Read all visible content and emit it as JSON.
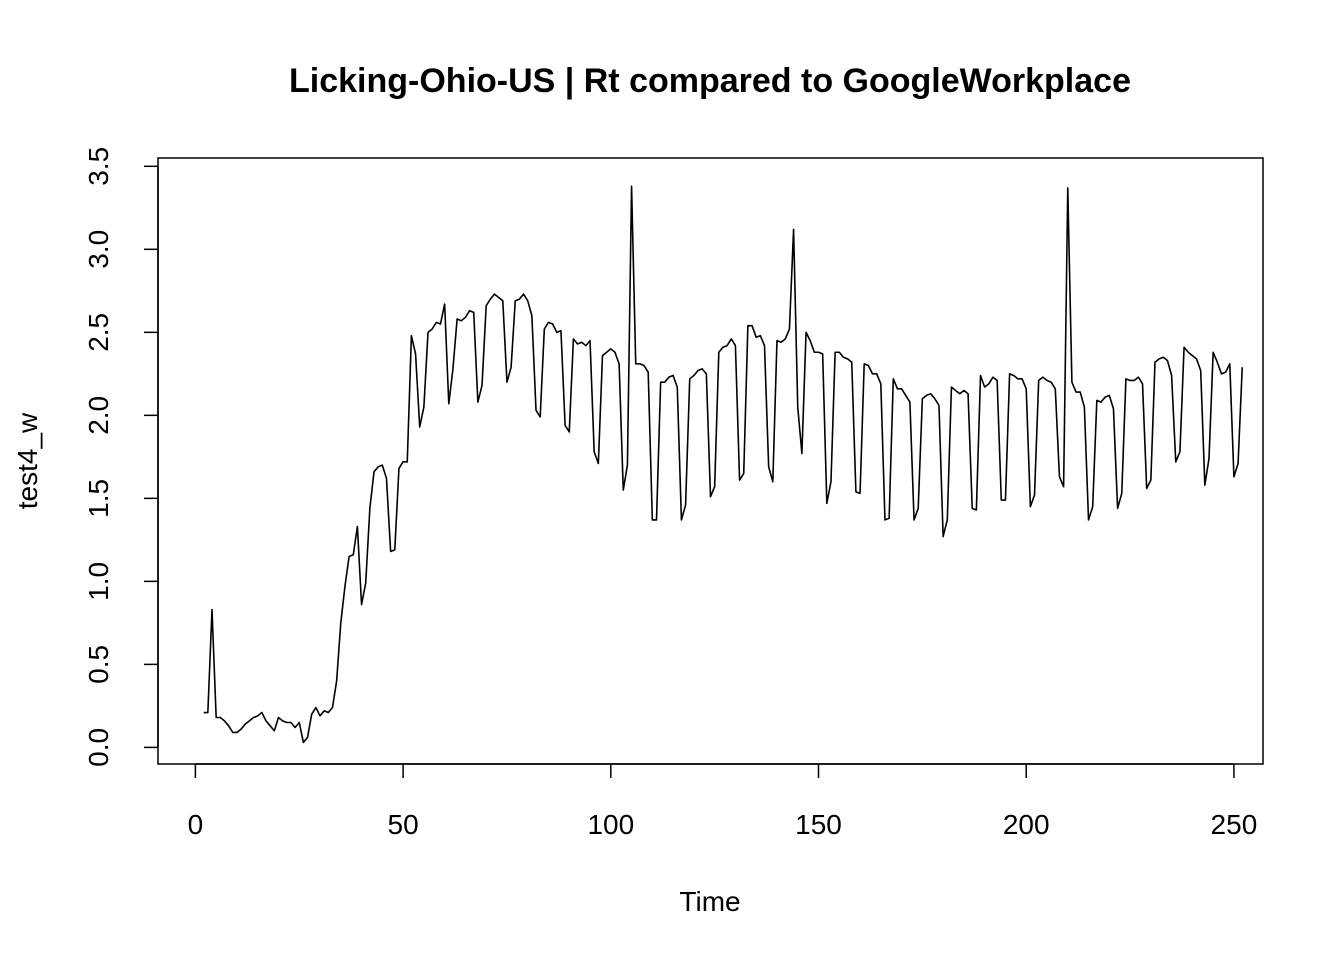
{
  "chart_data": {
    "type": "line",
    "title": "Licking-Ohio-US | Rt compared to GoogleWorkplace",
    "xlabel": "Time",
    "ylabel": "test4_w",
    "xlim": [
      -9,
      257
    ],
    "ylim": [
      -0.1,
      3.55
    ],
    "x_ticks": [
      0,
      50,
      100,
      150,
      200,
      250
    ],
    "y_ticks": [
      0.0,
      0.5,
      1.0,
      1.5,
      2.0,
      2.5,
      3.0,
      3.5
    ],
    "x_tick_labels": [
      "0",
      "50",
      "100",
      "150",
      "200",
      "250"
    ],
    "y_tick_labels": [
      "0.0",
      "0.5",
      "1.0",
      "1.5",
      "2.0",
      "2.5",
      "3.0",
      "3.5"
    ],
    "grid": false,
    "line_color": "#000000",
    "series": [
      {
        "name": "",
        "x_start": 2,
        "x_step": 1,
        "values": [
          0.21,
          0.21,
          0.83,
          0.18,
          0.18,
          0.16,
          0.13,
          0.09,
          0.09,
          0.11,
          0.14,
          0.16,
          0.18,
          0.19,
          0.21,
          0.16,
          0.13,
          0.1,
          0.18,
          0.16,
          0.15,
          0.15,
          0.12,
          0.15,
          0.03,
          0.06,
          0.2,
          0.24,
          0.19,
          0.22,
          0.21,
          0.24,
          0.4,
          0.75,
          0.97,
          1.15,
          1.16,
          1.33,
          0.86,
          0.99,
          1.44,
          1.66,
          1.69,
          1.7,
          1.62,
          1.18,
          1.19,
          1.68,
          1.72,
          1.72,
          2.48,
          2.37,
          1.93,
          2.05,
          2.5,
          2.52,
          2.56,
          2.55,
          2.67,
          2.07,
          2.28,
          2.58,
          2.57,
          2.59,
          2.63,
          2.62,
          2.08,
          2.18,
          2.66,
          2.7,
          2.73,
          2.71,
          2.69,
          2.2,
          2.29,
          2.69,
          2.7,
          2.73,
          2.69,
          2.6,
          2.03,
          1.99,
          2.52,
          2.56,
          2.55,
          2.5,
          2.51,
          1.94,
          1.9,
          2.46,
          2.43,
          2.44,
          2.42,
          2.45,
          1.78,
          1.71,
          2.36,
          2.38,
          2.4,
          2.38,
          2.31,
          1.55,
          1.7,
          3.38,
          2.31,
          2.31,
          2.3,
          2.26,
          1.37,
          1.37,
          2.2,
          2.2,
          2.23,
          2.24,
          2.17,
          1.37,
          1.46,
          2.22,
          2.24,
          2.27,
          2.28,
          2.25,
          1.51,
          1.57,
          2.38,
          2.41,
          2.42,
          2.46,
          2.42,
          1.61,
          1.65,
          2.54,
          2.54,
          2.47,
          2.48,
          2.42,
          1.69,
          1.6,
          2.45,
          2.44,
          2.46,
          2.52,
          3.12,
          2.05,
          1.77,
          2.5,
          2.45,
          2.38,
          2.38,
          2.37,
          1.47,
          1.6,
          2.38,
          2.38,
          2.35,
          2.34,
          2.32,
          1.54,
          1.53,
          2.31,
          2.3,
          2.25,
          2.25,
          2.19,
          1.37,
          1.38,
          2.22,
          2.16,
          2.16,
          2.12,
          2.08,
          1.37,
          1.44,
          2.1,
          2.12,
          2.13,
          2.1,
          2.06,
          1.27,
          1.37,
          2.17,
          2.15,
          2.13,
          2.15,
          2.13,
          1.44,
          1.43,
          2.24,
          2.17,
          2.19,
          2.23,
          2.21,
          1.49,
          1.49,
          2.25,
          2.24,
          2.22,
          2.22,
          2.16,
          1.45,
          1.52,
          2.21,
          2.23,
          2.21,
          2.2,
          2.16,
          1.63,
          1.57,
          3.37,
          2.2,
          2.14,
          2.14,
          2.05,
          1.37,
          1.45,
          2.09,
          2.08,
          2.11,
          2.12,
          2.04,
          1.44,
          1.53,
          2.22,
          2.21,
          2.21,
          2.23,
          2.19,
          1.56,
          1.61,
          2.32,
          2.34,
          2.35,
          2.33,
          2.24,
          1.72,
          1.78,
          2.41,
          2.38,
          2.36,
          2.34,
          2.27,
          1.58,
          1.74,
          2.38,
          2.32,
          2.25,
          2.26,
          2.31,
          1.63,
          1.71,
          2.29
        ]
      }
    ]
  }
}
